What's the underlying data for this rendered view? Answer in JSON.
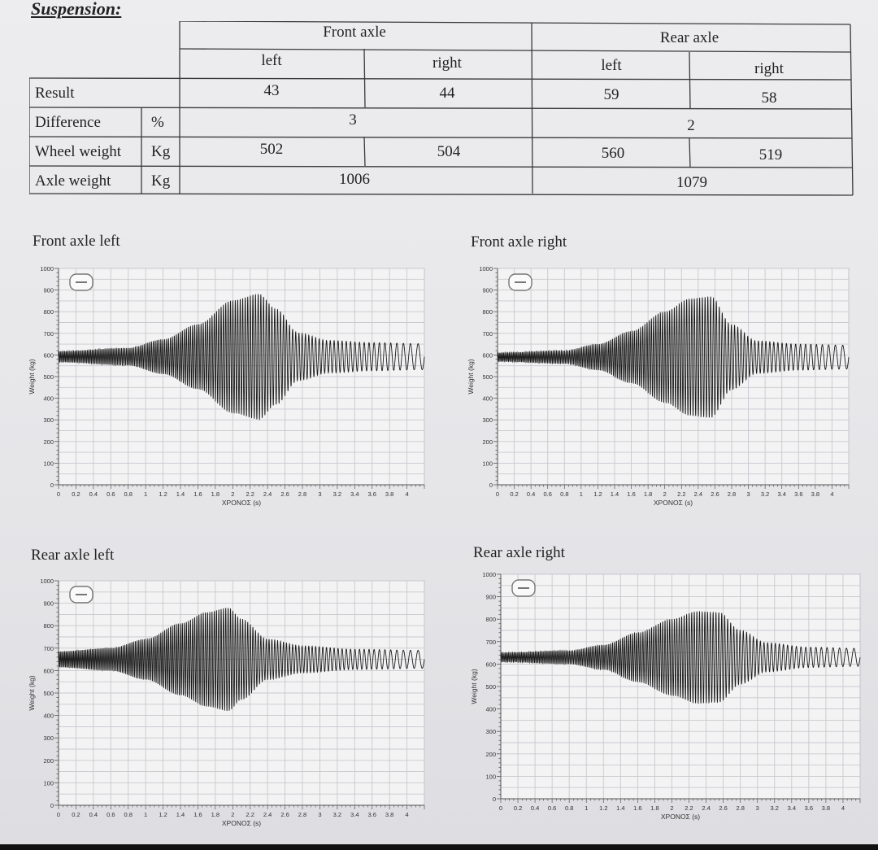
{
  "title": "Suspension:",
  "table": {
    "front_axle_label": "Front axle",
    "rear_axle_label": "Rear axle",
    "left_label": "left",
    "right_label": "right",
    "rows": {
      "result": {
        "label": "Result",
        "unit": "",
        "front_left": "43",
        "front_right": "44",
        "rear_left": "59",
        "rear_right": "58"
      },
      "difference": {
        "label": "Difference",
        "unit": "%",
        "front": "3",
        "rear": "2"
      },
      "wheel_weight": {
        "label": "Wheel weight",
        "unit": "Kg",
        "front_left": "502",
        "front_right": "504",
        "rear_left": "560",
        "rear_right": "519"
      },
      "axle_weight": {
        "label": "Axle weight",
        "unit": "Kg",
        "front": "1006",
        "rear": "1079"
      }
    }
  },
  "chart_data": [
    {
      "type": "line",
      "title": "Front axle left",
      "xlabel": "ΧΡΟΝΟΣ (s)",
      "ylabel": "Weight (kg)",
      "xlim": [
        0,
        4.2
      ],
      "ylim": [
        0,
        1000
      ],
      "x_ticks": [
        "0",
        "0.2",
        "0.4",
        "0.6",
        "0.8",
        "1",
        "1.2",
        "1.4",
        "1.6",
        "1.8",
        "2",
        "2.2",
        "2.4",
        "2.6",
        "2.8",
        "3",
        "3.2",
        "3.4",
        "3.6",
        "3.8",
        "4"
      ],
      "y_ticks": [
        "0",
        "100",
        "200",
        "300",
        "400",
        "500",
        "600",
        "700",
        "800",
        "900",
        "1000"
      ],
      "series": [
        {
          "name": "weight",
          "center": 592,
          "envelope_t": [
            0.0,
            0.8,
            1.2,
            1.6,
            2.0,
            2.3,
            2.5,
            2.75,
            3.1,
            3.6,
            4.2
          ],
          "envelope_amp": [
            25,
            40,
            80,
            150,
            260,
            290,
            220,
            110,
            75,
            65,
            60
          ],
          "frequency_start_hz": 60,
          "frequency_end_hz": 10
        }
      ]
    },
    {
      "type": "line",
      "title": "Front axle right",
      "xlabel": "ΧΡΟΝΟΣ (s)",
      "ylabel": "Weight (kg)",
      "xlim": [
        0,
        4.2
      ],
      "ylim": [
        0,
        1000
      ],
      "x_ticks": [
        "0",
        "0.2",
        "0.4",
        "0.6",
        "0.8",
        "1",
        "1.2",
        "1.4",
        "1.6",
        "1.8",
        "2",
        "2.2",
        "2.4",
        "2.6",
        "2.8",
        "3",
        "3.2",
        "3.4",
        "3.6",
        "3.8",
        "4"
      ],
      "y_ticks": [
        "0",
        "100",
        "200",
        "300",
        "400",
        "500",
        "600",
        "700",
        "800",
        "900",
        "1000"
      ],
      "series": [
        {
          "name": "weight",
          "center": 590,
          "envelope_t": [
            0.0,
            0.8,
            1.2,
            1.6,
            2.0,
            2.3,
            2.55,
            2.8,
            3.1,
            3.6,
            4.2
          ],
          "envelope_amp": [
            20,
            30,
            60,
            120,
            210,
            270,
            280,
            150,
            75,
            60,
            55
          ],
          "frequency_start_hz": 60,
          "frequency_end_hz": 10
        }
      ]
    },
    {
      "type": "line",
      "title": "Rear axle left",
      "xlabel": "ΧΡΟΝΟΣ (s)",
      "ylabel": "Weight (kg)",
      "xlim": [
        0,
        4.2
      ],
      "ylim": [
        0,
        1000
      ],
      "x_ticks": [
        "0",
        "0.2",
        "0.4",
        "0.6",
        "0.8",
        "1",
        "1.2",
        "1.4",
        "1.6",
        "1.8",
        "2",
        "2.2",
        "2.4",
        "2.6",
        "2.8",
        "3",
        "3.2",
        "3.4",
        "3.6",
        "3.8",
        "4"
      ],
      "y_ticks": [
        "0",
        "100",
        "200",
        "300",
        "400",
        "500",
        "600",
        "700",
        "800",
        "900",
        "1000"
      ],
      "series": [
        {
          "name": "weight",
          "center": 650,
          "envelope_t": [
            0.0,
            0.6,
            1.0,
            1.4,
            1.7,
            1.95,
            2.1,
            2.4,
            2.8,
            3.4,
            4.2
          ],
          "envelope_amp": [
            35,
            50,
            90,
            160,
            210,
            230,
            180,
            90,
            60,
            45,
            40
          ],
          "frequency_start_hz": 60,
          "frequency_end_hz": 10
        }
      ]
    },
    {
      "type": "line",
      "title": "Rear axle right",
      "xlabel": "ΧΡΟΝΟΣ (s)",
      "ylabel": "Weight (kg)",
      "xlim": [
        0,
        4.2
      ],
      "ylim": [
        0,
        1000
      ],
      "x_ticks": [
        "0",
        "0.2",
        "0.4",
        "0.6",
        "0.8",
        "1",
        "1.2",
        "1.4",
        "1.6",
        "1.8",
        "2",
        "2.2",
        "2.4",
        "2.6",
        "2.8",
        "3",
        "3.2",
        "3.4",
        "3.6",
        "3.8",
        "4"
      ],
      "y_ticks": [
        "0",
        "100",
        "200",
        "300",
        "400",
        "500",
        "600",
        "700",
        "800",
        "900",
        "1000"
      ],
      "series": [
        {
          "name": "weight",
          "center": 630,
          "envelope_t": [
            0.0,
            0.8,
            1.2,
            1.6,
            2.0,
            2.3,
            2.55,
            2.8,
            3.1,
            3.6,
            4.2
          ],
          "envelope_amp": [
            20,
            30,
            55,
            110,
            170,
            205,
            200,
            120,
            65,
            45,
            40
          ],
          "frequency_start_hz": 60,
          "frequency_end_hz": 10
        }
      ]
    }
  ]
}
